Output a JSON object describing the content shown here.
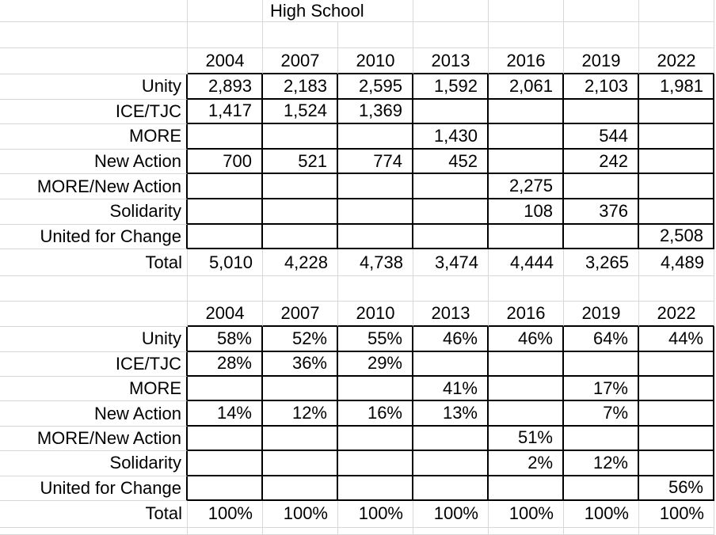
{
  "sheet": {
    "title": "High School",
    "years": [
      "2004",
      "2007",
      "2010",
      "2013",
      "2016",
      "2019",
      "2022"
    ],
    "caucus_labels": [
      "Unity",
      "ICE/TJC",
      "MORE",
      "New Action",
      "MORE/New Action",
      "Solidarity",
      "United for Change"
    ],
    "total_label": "Total",
    "tables": [
      {
        "name": "vote-counts",
        "rows": [
          [
            "2,893",
            "2,183",
            "2,595",
            "1,592",
            "2,061",
            "2,103",
            "1,981"
          ],
          [
            "1,417",
            "1,524",
            "1,369",
            "",
            "",
            "",
            ""
          ],
          [
            "",
            "",
            "",
            "1,430",
            "",
            "544",
            ""
          ],
          [
            "700",
            "521",
            "774",
            "452",
            "",
            "242",
            ""
          ],
          [
            "",
            "",
            "",
            "",
            "2,275",
            "",
            ""
          ],
          [
            "",
            "",
            "",
            "",
            "108",
            "376",
            ""
          ],
          [
            "",
            "",
            "",
            "",
            "",
            "",
            "2,508"
          ]
        ],
        "totals": [
          "5,010",
          "4,228",
          "4,738",
          "3,474",
          "4,444",
          "3,265",
          "4,489"
        ],
        "total_error_flags": true
      },
      {
        "name": "vote-percentages",
        "rows": [
          [
            "58%",
            "52%",
            "55%",
            "46%",
            "46%",
            "64%",
            "44%"
          ],
          [
            "28%",
            "36%",
            "29%",
            "",
            "",
            "",
            ""
          ],
          [
            "",
            "",
            "",
            "41%",
            "",
            "17%",
            ""
          ],
          [
            "14%",
            "12%",
            "16%",
            "13%",
            "",
            "7%",
            ""
          ],
          [
            "",
            "",
            "",
            "",
            "51%",
            "",
            ""
          ],
          [
            "",
            "",
            "",
            "",
            "2%",
            "12%",
            ""
          ],
          [
            "",
            "",
            "",
            "",
            "",
            "",
            "56%"
          ]
        ],
        "totals": [
          "100%",
          "100%",
          "100%",
          "100%",
          "100%",
          "100%",
          "100%"
        ],
        "total_error_flags": false
      }
    ],
    "colors": {
      "background": "#ffffff",
      "text": "#000000",
      "gridline": "#d8d8d8",
      "cell_border": "#000000",
      "error_flag": "#2e7d32"
    }
  }
}
